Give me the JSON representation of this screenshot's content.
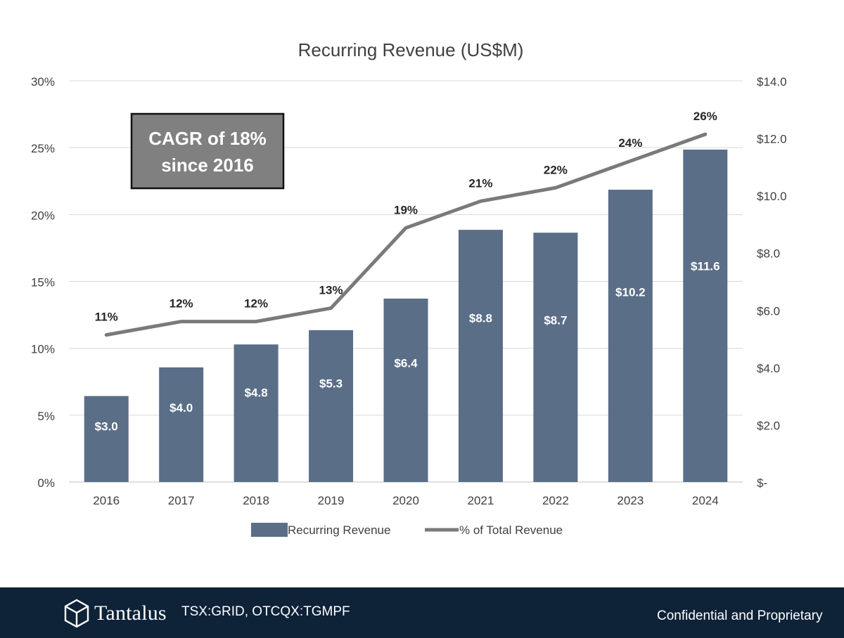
{
  "chart_data": {
    "type": "bar+line",
    "title": "Recurring Revenue (US$M)",
    "categories": [
      "2016",
      "2017",
      "2018",
      "2019",
      "2020",
      "2021",
      "2022",
      "2023",
      "2024"
    ],
    "series": [
      {
        "name": "Recurring Revenue",
        "type": "bar",
        "axis": "right",
        "values": [
          3.0,
          4.0,
          4.8,
          5.3,
          6.4,
          8.8,
          8.7,
          10.2,
          11.6
        ],
        "labels": [
          "$3.0",
          "$4.0",
          "$4.8",
          "$5.3",
          "$6.4",
          "$8.8",
          "$8.7",
          "$10.2",
          "$11.6"
        ],
        "color": "#5a6e87"
      },
      {
        "name": "% of Total Revenue",
        "type": "line",
        "axis": "left",
        "values": [
          11,
          12,
          12,
          13,
          19,
          21,
          22,
          24,
          26
        ],
        "labels": [
          "11%",
          "12%",
          "12%",
          "13%",
          "19%",
          "21%",
          "22%",
          "24%",
          "26%"
        ],
        "color": "#7a7a7a"
      }
    ],
    "left_axis": {
      "min": 0,
      "max": 30,
      "ticks": [
        0,
        5,
        10,
        15,
        20,
        25,
        30
      ],
      "tick_labels": [
        "0%",
        "5%",
        "10%",
        "15%",
        "20%",
        "25%",
        "30%"
      ]
    },
    "right_axis": {
      "min": 0,
      "max": 14,
      "ticks": [
        0,
        2,
        4,
        6,
        8,
        10,
        12,
        14
      ],
      "tick_labels": [
        "$-",
        "$2.0",
        "$4.0",
        "$6.0",
        "$8.0",
        "$10.0",
        "$12.0",
        "$14.0"
      ]
    },
    "annotation": {
      "lines": [
        "CAGR of 18%",
        "since 2016"
      ]
    },
    "grid": true,
    "legend_position": "bottom-center"
  },
  "footer": {
    "logo_text": "Tantalus",
    "ticker": "TSX:GRID, OTCQX:TGMPF",
    "confidential": "Confidential and Proprietary"
  }
}
